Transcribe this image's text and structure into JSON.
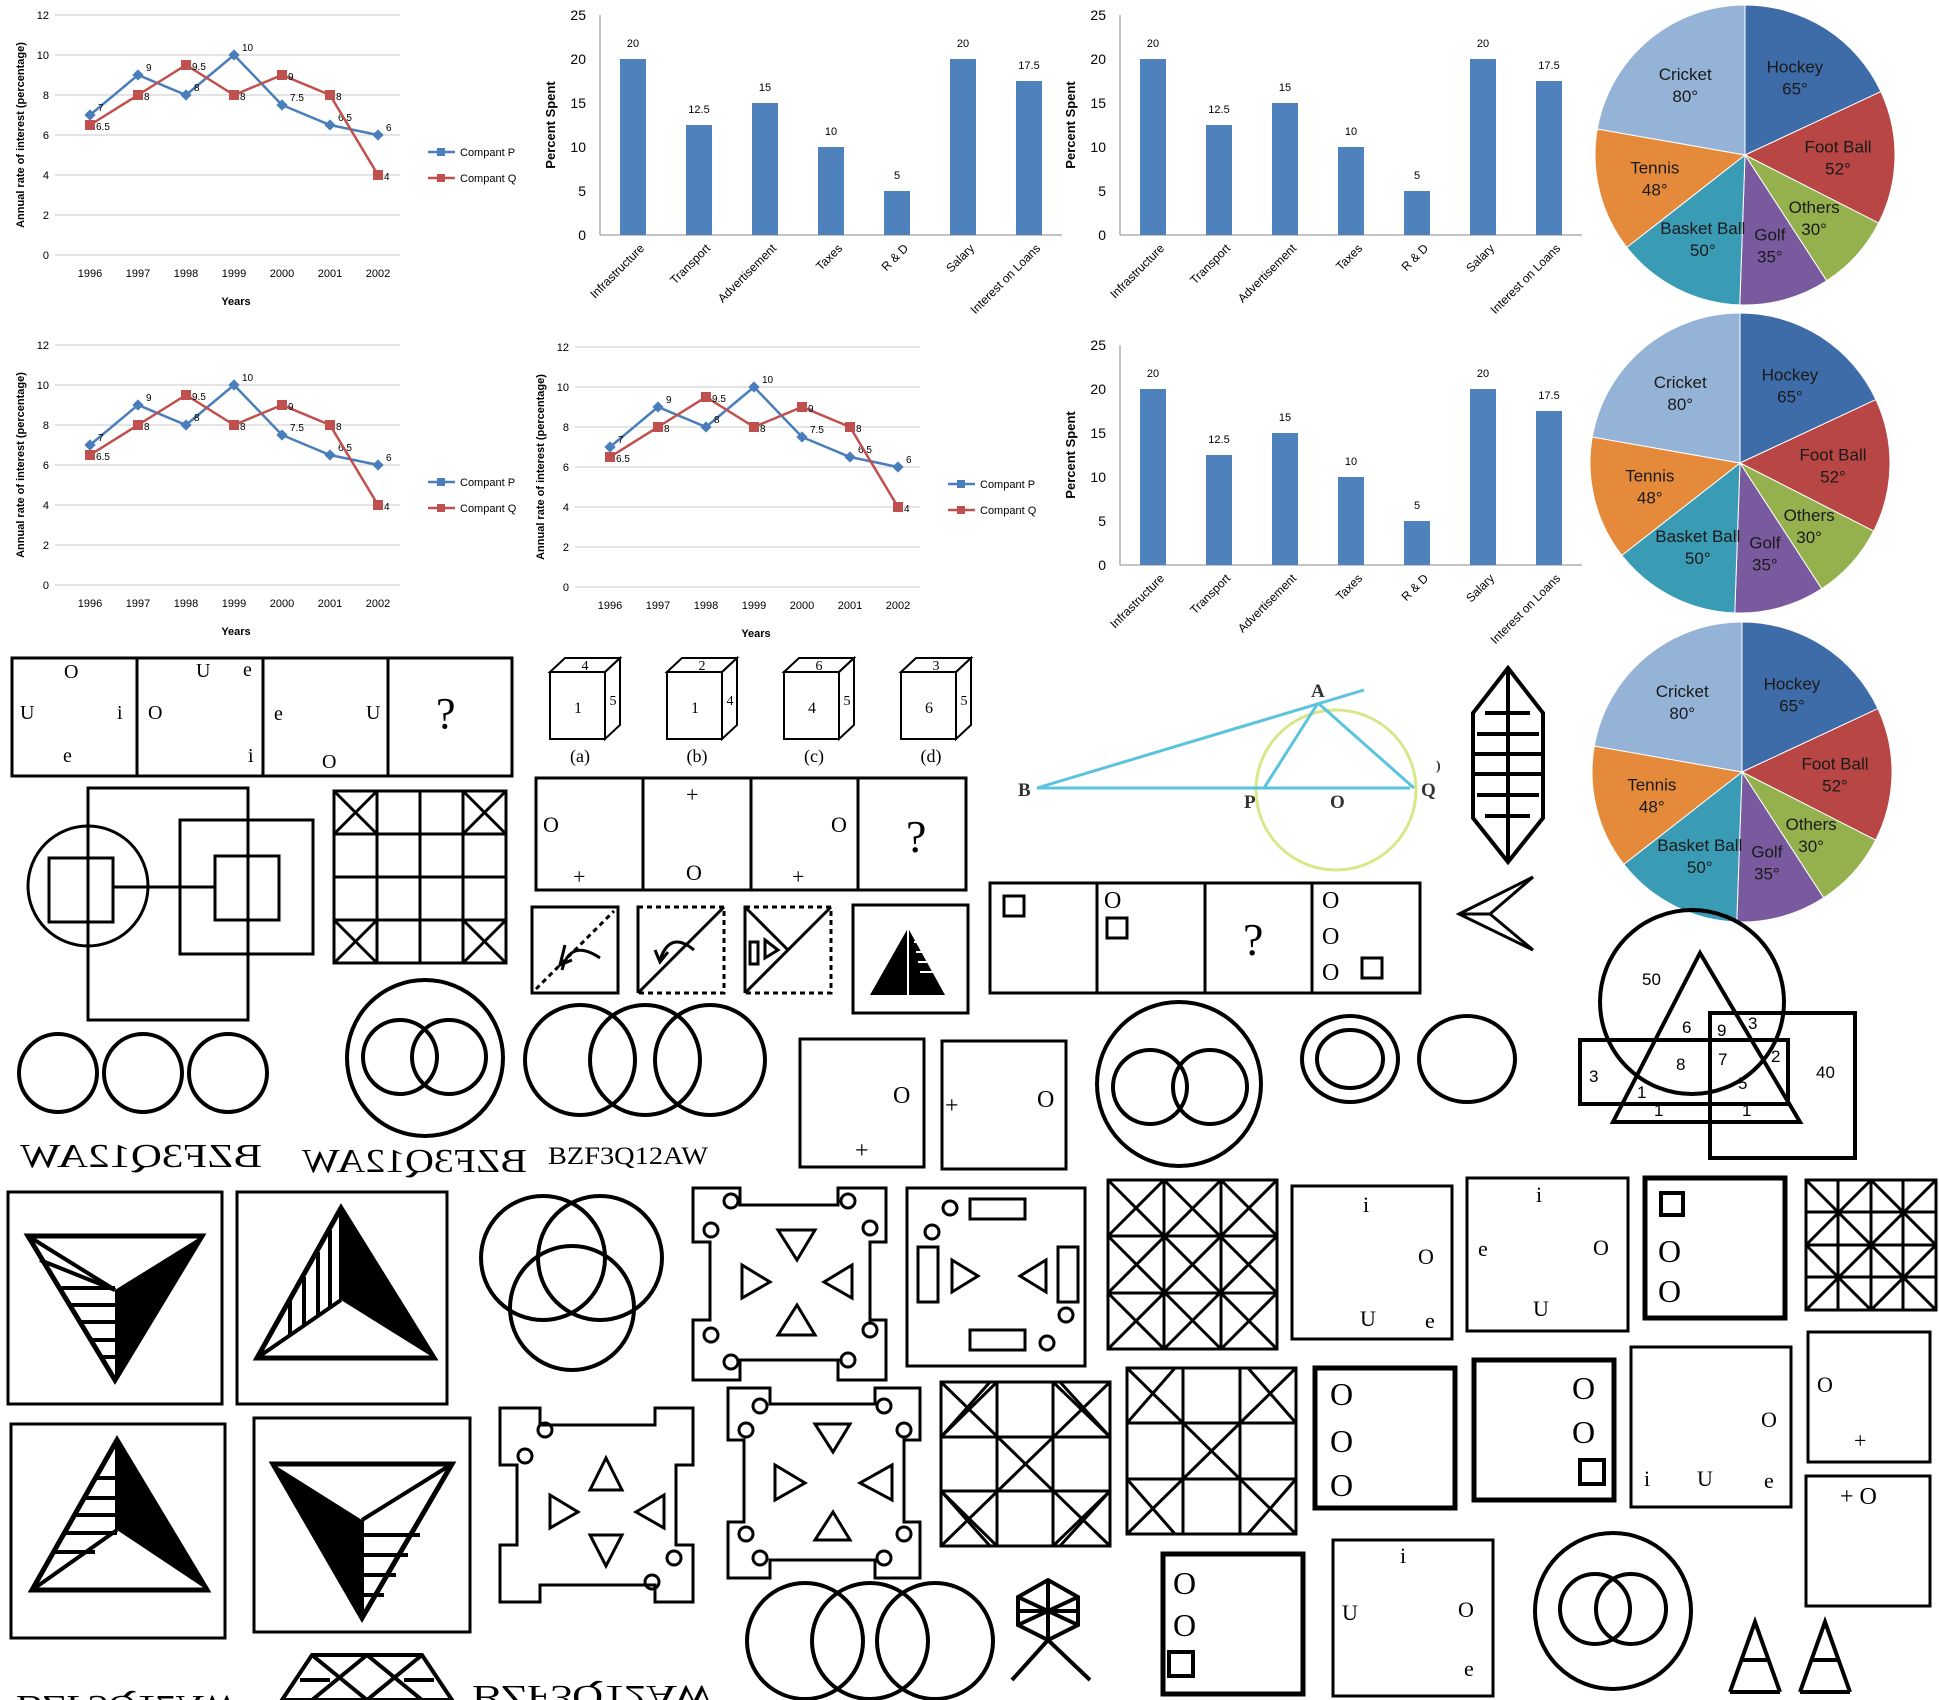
{
  "line_chart": {
    "y_label": "Annual rate of interest (percentage)",
    "x_label": "Years",
    "years": [
      "1996",
      "1997",
      "1998",
      "1999",
      "2000",
      "2001",
      "2002"
    ],
    "y_ticks": [
      "0",
      "2",
      "4",
      "6",
      "8",
      "10",
      "12"
    ],
    "series": [
      {
        "name": "Compant P",
        "color": "#4a7ebb",
        "values": [
          7,
          9,
          8,
          10,
          7.5,
          6.5,
          6
        ],
        "labels": [
          "7",
          "9",
          "8",
          "10",
          "7.5",
          "6.5",
          "6"
        ]
      },
      {
        "name": "Compant Q",
        "color": "#c0504d",
        "values": [
          6.5,
          8,
          9.5,
          8,
          9,
          8,
          4
        ],
        "labels": [
          "6.5",
          "8",
          "9.5",
          "8",
          "9",
          "8",
          "4"
        ]
      }
    ]
  },
  "bar_chart": {
    "y_label": "Percent Spent",
    "y_ticks": [
      "0",
      "5",
      "10",
      "15",
      "20",
      "25"
    ],
    "categories": [
      "Infrastructure",
      "Transport",
      "Advertisement",
      "Taxes",
      "R & D",
      "Salary",
      "Interest on Loans"
    ],
    "values": [
      20,
      12.5,
      15,
      10,
      5,
      20,
      17.5
    ],
    "labels": [
      "20",
      "12.5",
      "15",
      "10",
      "5",
      "20",
      "17.5"
    ],
    "color": "#4f81bd"
  },
  "pie_chart": {
    "slices": [
      {
        "name": "Hockey",
        "value": "65°",
        "degrees": 65,
        "color": "#3e6ca8"
      },
      {
        "name": "Foot Ball",
        "value": "52°",
        "degrees": 52,
        "color": "#b84644"
      },
      {
        "name": "Others",
        "value": "30°",
        "degrees": 30,
        "color": "#95b14e"
      },
      {
        "name": "Golf",
        "value": "35°",
        "degrees": 35,
        "color": "#7a5a9e"
      },
      {
        "name": "Basket Ball",
        "value": "50°",
        "degrees": 50,
        "color": "#3a9bb5"
      },
      {
        "name": "Tennis",
        "value": "48°",
        "degrees": 48,
        "color": "#e58a3a"
      },
      {
        "name": "Cricket",
        "value": "80°",
        "degrees": 80,
        "color": "#95b3d7"
      }
    ]
  },
  "chart_data": [
    {
      "type": "line",
      "xlabel": "Years",
      "ylabel": "Annual rate of interest (percentage)",
      "ylim": [
        0,
        12
      ],
      "x": [
        "1996",
        "1997",
        "1998",
        "1999",
        "2000",
        "2001",
        "2002"
      ],
      "series": [
        {
          "name": "Compant P",
          "values": [
            7,
            9,
            8,
            10,
            7.5,
            6.5,
            6
          ]
        },
        {
          "name": "Compant Q",
          "values": [
            6.5,
            8,
            9.5,
            8,
            9,
            8,
            4
          ]
        }
      ]
    },
    {
      "type": "bar",
      "ylabel": "Percent Spent",
      "ylim": [
        0,
        25
      ],
      "categories": [
        "Infrastructure",
        "Transport",
        "Advertisement",
        "Taxes",
        "R & D",
        "Salary",
        "Interest on Loans"
      ],
      "values": [
        20,
        12.5,
        15,
        10,
        5,
        20,
        17.5
      ]
    },
    {
      "type": "pie",
      "categories": [
        "Hockey",
        "Foot Ball",
        "Others",
        "Golf",
        "Basket Ball",
        "Tennis",
        "Cricket"
      ],
      "values": [
        65,
        52,
        30,
        35,
        50,
        48,
        80
      ]
    }
  ],
  "letters_series": {
    "cells": [
      [
        "O",
        "U",
        "i",
        "e"
      ],
      [
        "U",
        "e",
        "O",
        "i"
      ],
      [
        "e",
        "U",
        "O"
      ],
      [
        "?"
      ]
    ]
  },
  "dice": {
    "items": [
      {
        "top": "4",
        "front": "1",
        "side": "5",
        "caption": "(a)"
      },
      {
        "top": "2",
        "front": "1",
        "side": "4",
        "caption": "(b)"
      },
      {
        "top": "6",
        "front": "4",
        "side": "5",
        "caption": "(c)"
      },
      {
        "top": "3",
        "front": "6",
        "side": "5",
        "caption": "(d)"
      }
    ]
  },
  "plus_o_series": {
    "o": "O",
    "plus": "+",
    "question": "?"
  },
  "geometry": {
    "points": [
      "A",
      "B",
      "P",
      "O",
      "Q"
    ],
    "paren": ")"
  },
  "square_series": {
    "o": "O",
    "question": "?"
  },
  "venn_numbers": [
    "50",
    "6",
    "9",
    "3",
    "3",
    "8",
    "7",
    "2",
    "40",
    "1",
    "5",
    "1",
    "1"
  ],
  "mirror_texts": {
    "original": "BZF3Q12AW"
  },
  "answer_boxes": {
    "i": "i",
    "o": "O",
    "u": "U",
    "e": "e",
    "plus": "+",
    "plus_o": "+ O"
  }
}
